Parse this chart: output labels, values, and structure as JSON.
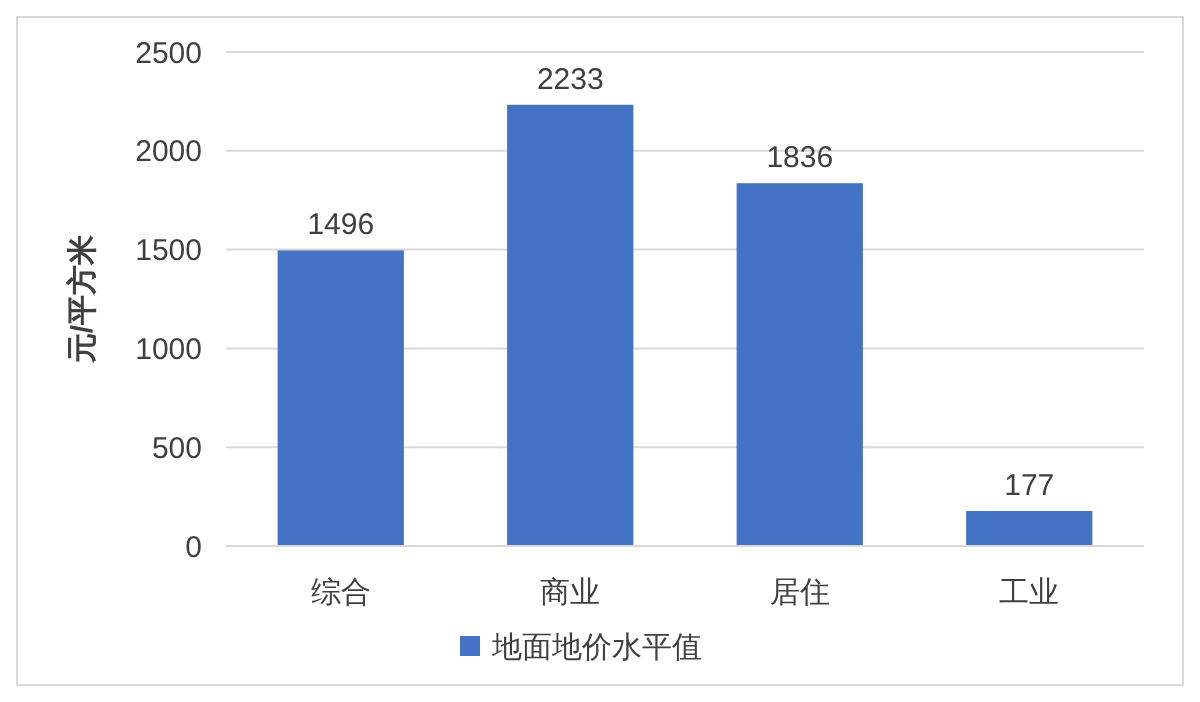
{
  "chart_data": {
    "type": "bar",
    "ylabel": "元/平方米",
    "categories": [
      "综合",
      "商业",
      "居住",
      "工业"
    ],
    "series": [
      {
        "name": "地面地价水平值",
        "color": "#4472c4",
        "values": [
          1496,
          2233,
          1836,
          177
        ]
      }
    ],
    "ylim": [
      0,
      2500
    ],
    "yticks": [
      0,
      500,
      1000,
      1500,
      2000,
      2500
    ],
    "grid": "y",
    "legend": "bottom",
    "data_labels": true
  }
}
